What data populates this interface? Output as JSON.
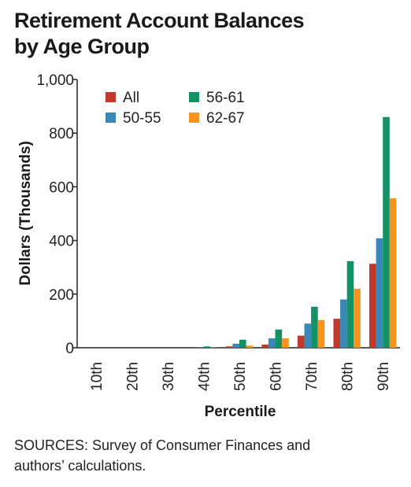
{
  "title_lines": [
    "Retirement Account Balances",
    "by Age Group"
  ],
  "sources_lines": [
    "SOURCES: Survey of Consumer Finances and",
    "authors’ calculations."
  ],
  "chart_data": {
    "type": "bar",
    "title": "Retirement Account Balances by Age Group",
    "xlabel": "Percentile",
    "ylabel": "Dollars (Thousands)",
    "ylim": [
      0,
      1000
    ],
    "yticks": [
      0,
      200,
      400,
      600,
      800,
      1000
    ],
    "ytick_labels": [
      "0",
      "200",
      "400",
      "600",
      "800",
      "1,000"
    ],
    "categories": [
      "10th",
      "20th",
      "30th",
      "40th",
      "50th",
      "60th",
      "70th",
      "80th",
      "90th"
    ],
    "legend_placement": "top-left",
    "grid": false,
    "series": [
      {
        "name": "All",
        "color": "#c0392b",
        "values": [
          0,
          0,
          0,
          0,
          5,
          12,
          45,
          108,
          313
        ]
      },
      {
        "name": "50-55",
        "color": "#3a88b8",
        "values": [
          0,
          0,
          0,
          1,
          15,
          35,
          90,
          180,
          408
        ]
      },
      {
        "name": "56-61",
        "color": "#159265",
        "values": [
          0,
          0,
          0,
          5,
          30,
          68,
          153,
          323,
          860
        ]
      },
      {
        "name": "62-67",
        "color": "#f7941d",
        "values": [
          0,
          0,
          0,
          1,
          8,
          35,
          103,
          220,
          557
        ]
      }
    ]
  }
}
